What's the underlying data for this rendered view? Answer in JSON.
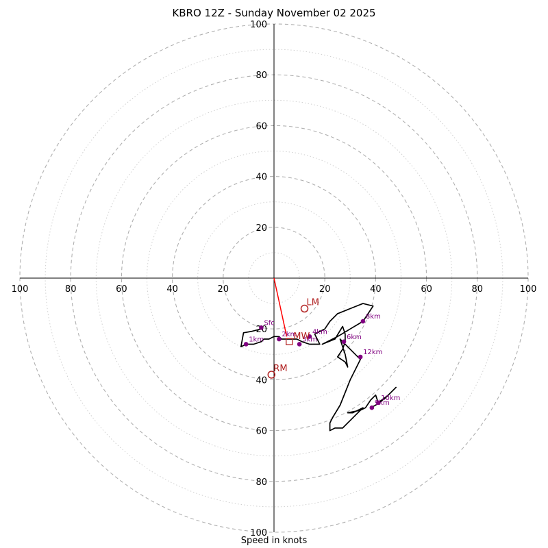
{
  "chart_data": {
    "type": "hodograph",
    "title": "KBRO 12Z - Sunday November 02 2025",
    "xlabel": "Speed in knots",
    "units": "knots",
    "rings_major": [
      20,
      40,
      60,
      80,
      100
    ],
    "rings_minor": [
      10,
      30,
      50,
      70,
      90
    ],
    "max_speed": 100,
    "tick_labels": {
      "left": [
        "100",
        "80",
        "60",
        "40",
        "20"
      ],
      "right": [
        "20",
        "40",
        "60",
        "80",
        "100"
      ],
      "top": [
        "20",
        "40",
        "60",
        "80",
        "100"
      ],
      "bottom": [
        "20",
        "40",
        "60",
        "80",
        "100"
      ]
    },
    "hodograph_uv": [
      [
        -5,
        -20
      ],
      [
        -9,
        -21
      ],
      [
        -12,
        -21.5
      ],
      [
        -13,
        -27
      ],
      [
        -11,
        -26
      ],
      [
        -8,
        -26
      ],
      [
        -5,
        -25
      ],
      [
        -4,
        -24
      ],
      [
        -2,
        -24
      ],
      [
        0,
        -23
      ],
      [
        2,
        -23
      ],
      [
        3,
        -24
      ],
      [
        5,
        -24
      ],
      [
        7,
        -24
      ],
      [
        9,
        -24
      ],
      [
        11,
        -25
      ],
      [
        14,
        -26
      ],
      [
        18,
        -26
      ],
      [
        16,
        -22
      ],
      [
        20,
        -20
      ],
      [
        22,
        -17
      ],
      [
        25,
        -14
      ],
      [
        30,
        -12
      ],
      [
        35,
        -10
      ],
      [
        39,
        -11
      ],
      [
        35,
        -17
      ],
      [
        30,
        -20
      ],
      [
        25,
        -23
      ],
      [
        19,
        -26
      ],
      [
        24,
        -24
      ],
      [
        27,
        -19
      ],
      [
        28,
        -22
      ],
      [
        28,
        -25
      ],
      [
        27,
        -28
      ],
      [
        25,
        -31
      ],
      [
        28,
        -33
      ],
      [
        29,
        -35
      ],
      [
        28,
        -30
      ],
      [
        27,
        -27
      ],
      [
        26,
        -24
      ],
      [
        29,
        -27
      ],
      [
        32,
        -30
      ],
      [
        34,
        -32
      ],
      [
        32,
        -36
      ],
      [
        30,
        -40
      ],
      [
        28,
        -45
      ],
      [
        26,
        -50
      ],
      [
        23,
        -55
      ],
      [
        22,
        -57
      ],
      [
        22,
        -60
      ],
      [
        24,
        -59
      ],
      [
        27,
        -59
      ],
      [
        30,
        -56
      ],
      [
        35,
        -51
      ],
      [
        31,
        -53
      ],
      [
        29,
        -53
      ],
      [
        34,
        -52
      ],
      [
        36,
        -51
      ],
      [
        38,
        -48
      ],
      [
        40,
        -46
      ],
      [
        41,
        -49
      ],
      [
        45,
        -46
      ],
      [
        48,
        -43
      ],
      [
        44,
        -47
      ],
      [
        40,
        -50
      ],
      [
        38,
        -51
      ]
    ],
    "height_markers": [
      {
        "label": "Sfc",
        "u": -5,
        "v": -19.5
      },
      {
        "label": "1km",
        "u": -11,
        "v": -26
      },
      {
        "label": "2km",
        "u": 2,
        "v": -24
      },
      {
        "label": "3km",
        "u": 10,
        "v": -26
      },
      {
        "label": "4km",
        "u": 14,
        "v": -23
      },
      {
        "label": "6km",
        "u": 27.5,
        "v": -25
      },
      {
        "label": "8km",
        "u": 35,
        "v": -17
      },
      {
        "label": "9km",
        "u": 38.5,
        "v": -51
      },
      {
        "label": "10km",
        "u": 41,
        "v": -49
      },
      {
        "label": "12km",
        "u": 34,
        "v": -31
      }
    ],
    "storm_motion": [
      {
        "label": "LM",
        "u": 12,
        "v": -12
      },
      {
        "label": "RM",
        "u": -1,
        "v": -38
      }
    ],
    "mean_wind": {
      "label": "MW",
      "u": 6,
      "v": -25
    },
    "shear_vector": {
      "u1": 0,
      "v1": 0,
      "u2": 5,
      "v2": -23
    }
  }
}
